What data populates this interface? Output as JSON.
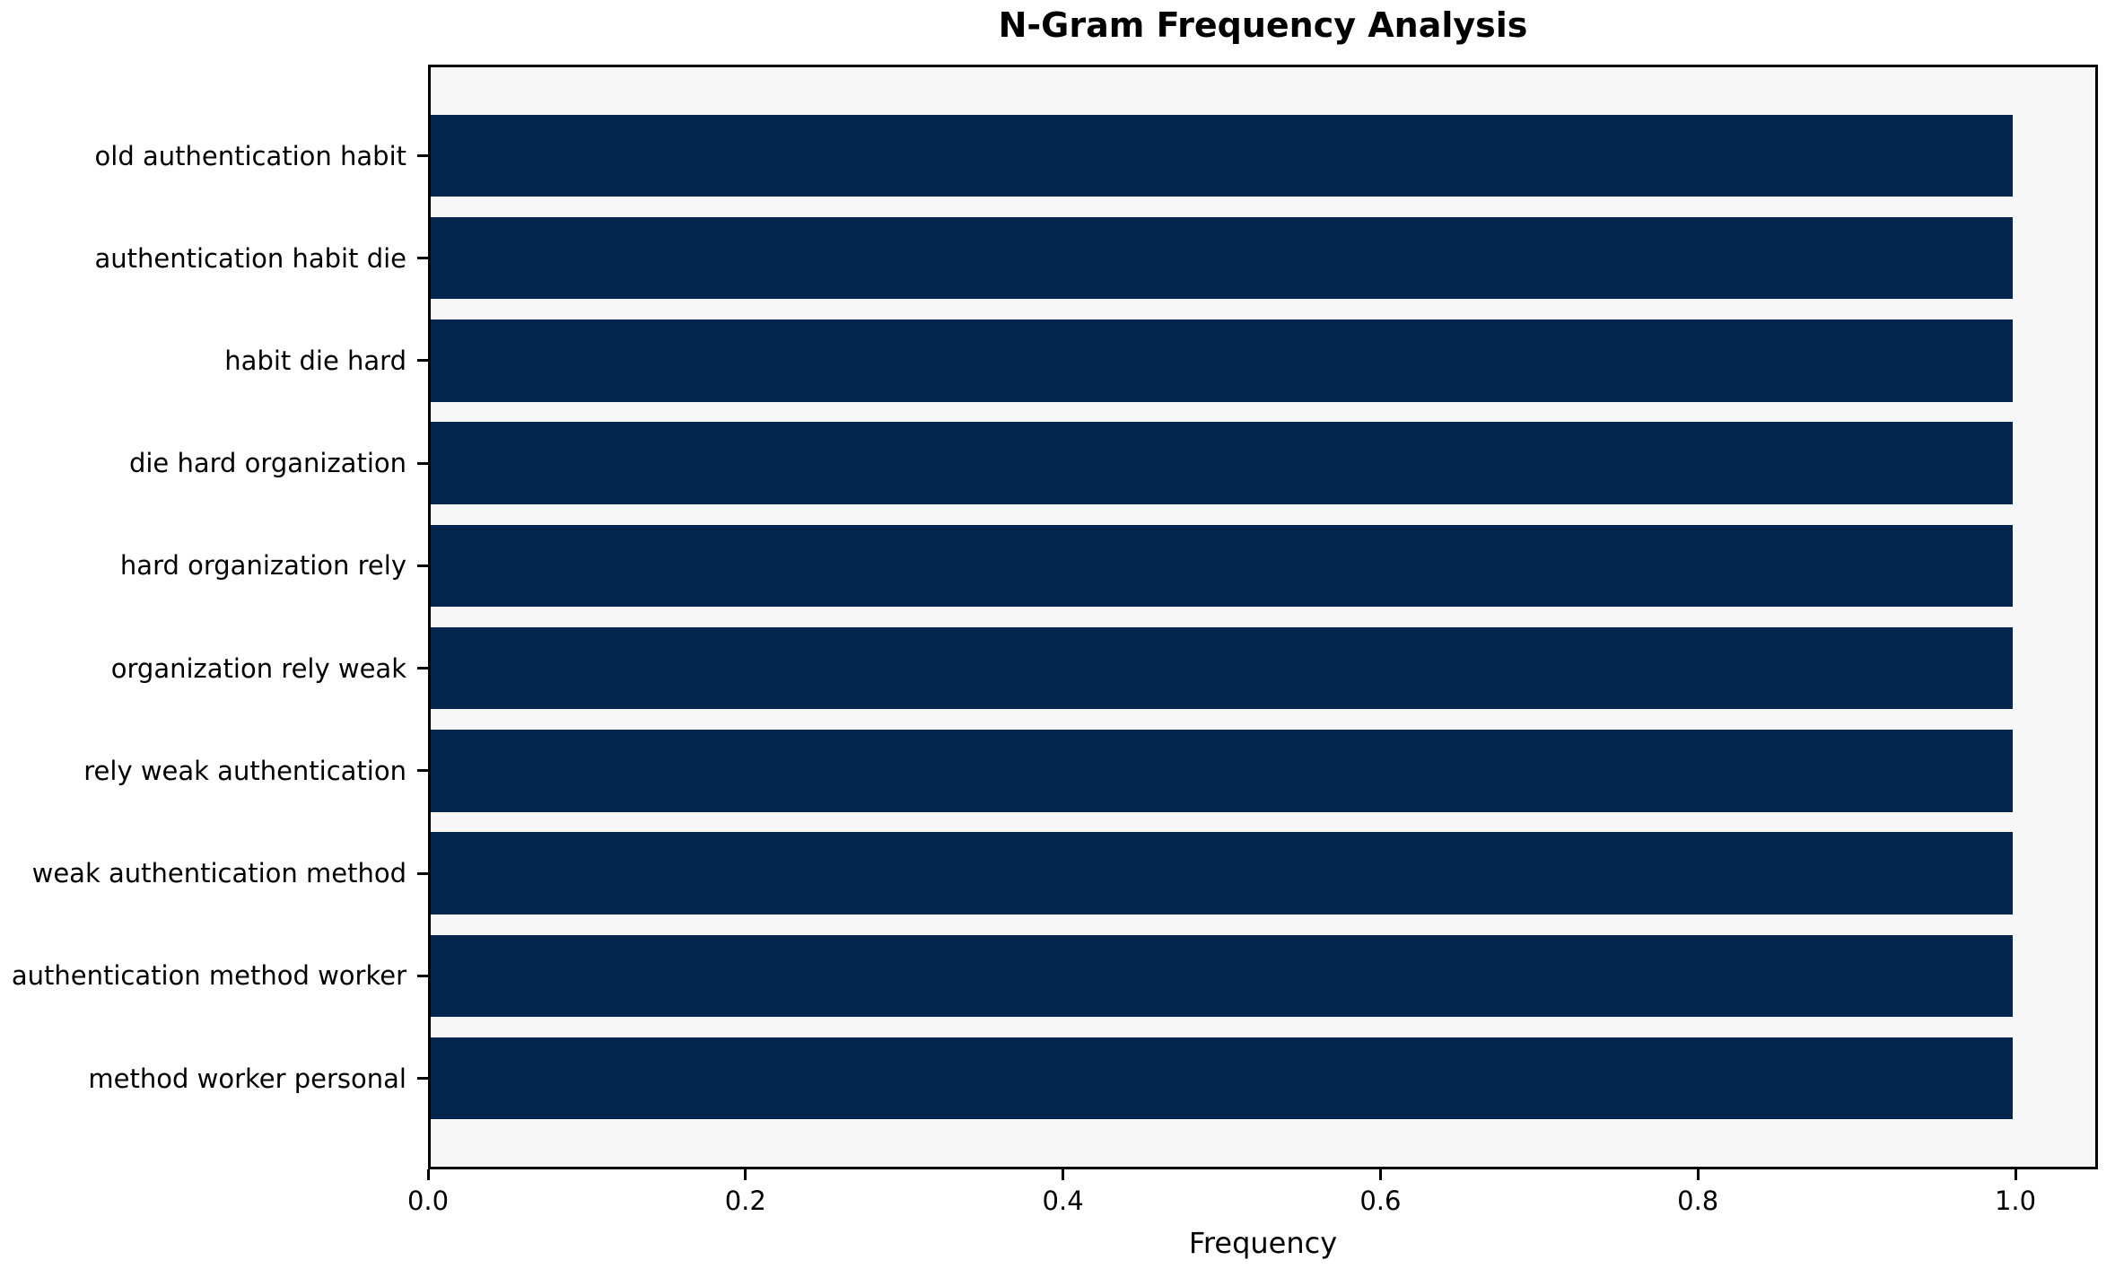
{
  "chart_data": {
    "type": "bar",
    "orientation": "horizontal",
    "title": "N-Gram Frequency Analysis",
    "xlabel": "Frequency",
    "ylabel": "",
    "categories": [
      "old authentication habit",
      "authentication habit die",
      "habit die hard",
      "die hard organization",
      "hard organization rely",
      "organization rely weak",
      "rely weak authentication",
      "weak authentication method",
      "authentication method worker",
      "method worker personal"
    ],
    "values": [
      1.0,
      1.0,
      1.0,
      1.0,
      1.0,
      1.0,
      1.0,
      1.0,
      1.0,
      1.0
    ],
    "xticks": [
      0.0,
      0.2,
      0.4,
      0.6,
      0.8,
      1.0
    ],
    "xlim": [
      0,
      1.052
    ],
    "grid": false,
    "legend": null,
    "bar_color": "#03254e",
    "plot_bg": "#f7f7f7",
    "spine_color": "#000000"
  }
}
